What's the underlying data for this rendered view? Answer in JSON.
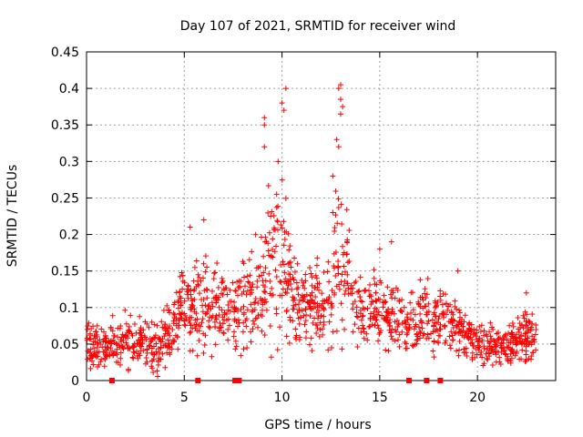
{
  "chart_data": {
    "type": "scatter",
    "title": "Day 107 of 2021, SRMTID for receiver wind",
    "xlabel": "GPS time / hours",
    "ylabel": "SRMTID / TECUs",
    "xlim": [
      0,
      24
    ],
    "ylim": [
      0,
      0.45
    ],
    "xticks": [
      0,
      5,
      10,
      15,
      20
    ],
    "yticks": [
      0,
      0.05,
      0.1,
      0.15,
      0.2,
      0.25,
      0.3,
      0.35,
      0.4,
      0.45
    ],
    "ytick_labels": [
      "0",
      "0.05",
      "0.1",
      "0.15",
      "0.2",
      "0.25",
      "0.3",
      "0.35",
      "0.4",
      "0.45"
    ],
    "grid": true,
    "marker": "+",
    "color": "#ff0000",
    "series": [
      {
        "name": "SRMTID",
        "envelope_hours": [
          0.0,
          0.5,
          1.0,
          1.5,
          2.0,
          2.5,
          3.0,
          3.5,
          4.0,
          4.5,
          5.0,
          5.5,
          6.0,
          6.5,
          7.0,
          7.5,
          8.0,
          8.5,
          9.0,
          9.5,
          10.0,
          10.5,
          11.0,
          11.5,
          12.0,
          12.5,
          13.0,
          13.5,
          14.0,
          14.5,
          15.0,
          15.5,
          16.0,
          16.5,
          17.0,
          17.5,
          18.0,
          18.5,
          19.0,
          19.5,
          20.0,
          20.5,
          21.0,
          21.5,
          22.0,
          22.5,
          23.0
        ],
        "envelope_center": [
          0.055,
          0.045,
          0.045,
          0.05,
          0.055,
          0.055,
          0.05,
          0.045,
          0.05,
          0.08,
          0.1,
          0.1,
          0.1,
          0.1,
          0.1,
          0.1,
          0.11,
          0.12,
          0.14,
          0.16,
          0.17,
          0.12,
          0.1,
          0.1,
          0.11,
          0.13,
          0.17,
          0.12,
          0.1,
          0.1,
          0.1,
          0.09,
          0.08,
          0.075,
          0.08,
          0.085,
          0.085,
          0.08,
          0.075,
          0.06,
          0.055,
          0.05,
          0.05,
          0.05,
          0.05,
          0.06,
          0.06
        ],
        "envelope_spread": [
          0.03,
          0.025,
          0.025,
          0.025,
          0.03,
          0.03,
          0.03,
          0.03,
          0.03,
          0.035,
          0.04,
          0.05,
          0.05,
          0.045,
          0.04,
          0.04,
          0.045,
          0.05,
          0.06,
          0.08,
          0.09,
          0.05,
          0.04,
          0.04,
          0.05,
          0.08,
          0.09,
          0.05,
          0.04,
          0.04,
          0.04,
          0.035,
          0.035,
          0.03,
          0.035,
          0.04,
          0.035,
          0.035,
          0.03,
          0.025,
          0.025,
          0.025,
          0.025,
          0.025,
          0.025,
          0.03,
          0.03
        ],
        "zero_markers_hours": [
          1.3,
          5.7,
          7.6,
          7.7,
          7.8,
          16.5,
          17.4,
          18.1
        ],
        "notable_points": [
          {
            "x": 10.2,
            "y": 0.4
          },
          {
            "x": 10.0,
            "y": 0.38
          },
          {
            "x": 10.1,
            "y": 0.37
          },
          {
            "x": 9.8,
            "y": 0.3
          },
          {
            "x": 9.1,
            "y": 0.36
          },
          {
            "x": 9.1,
            "y": 0.35
          },
          {
            "x": 9.1,
            "y": 0.32
          },
          {
            "x": 13.0,
            "y": 0.405
          },
          {
            "x": 12.9,
            "y": 0.4
          },
          {
            "x": 13.0,
            "y": 0.385
          },
          {
            "x": 13.1,
            "y": 0.375
          },
          {
            "x": 13.0,
            "y": 0.365
          },
          {
            "x": 12.8,
            "y": 0.33
          },
          {
            "x": 12.9,
            "y": 0.32
          },
          {
            "x": 12.6,
            "y": 0.28
          },
          {
            "x": 12.6,
            "y": 0.23
          },
          {
            "x": 5.3,
            "y": 0.21
          },
          {
            "x": 6.0,
            "y": 0.22
          },
          {
            "x": 15.0,
            "y": 0.18
          },
          {
            "x": 15.6,
            "y": 0.19
          },
          {
            "x": 19.0,
            "y": 0.15
          },
          {
            "x": 22.5,
            "y": 0.12
          }
        ]
      }
    ]
  }
}
